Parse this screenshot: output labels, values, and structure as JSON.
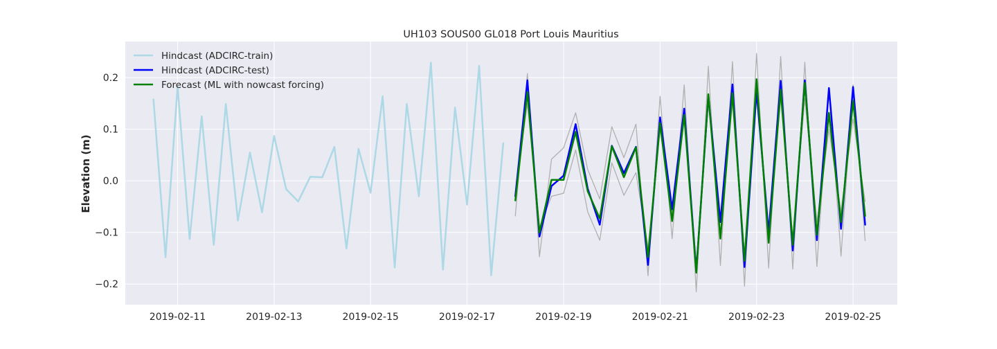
{
  "chart_data": {
    "type": "line",
    "title": "UH103 SOUS00 GL018 Port Louis Mauritius",
    "xlabel": "",
    "ylabel": "Elevation (m)",
    "x_axis": "date",
    "xlim": [
      "2019-02-09T22:00",
      "2019-02-25T22:00"
    ],
    "ylim": [
      -0.24,
      0.27
    ],
    "x_ticks": [
      "2019-02-11",
      "2019-02-13",
      "2019-02-15",
      "2019-02-17",
      "2019-02-19",
      "2019-02-21",
      "2019-02-23",
      "2019-02-25"
    ],
    "y_ticks": [
      -0.2,
      -0.1,
      0.0,
      0.1,
      0.2
    ],
    "y_tick_labels": [
      "−0.2",
      "−0.1",
      "0.0",
      "0.1",
      "0.2"
    ],
    "grid": true,
    "background": "#eaeaf2",
    "legend_position": "top-left",
    "series": [
      {
        "name": "Hindcast (ADCIRC-train)",
        "color": "#add8e6",
        "width": 2.5,
        "in_legend": true,
        "x": [
          "2019-02-10T12:00",
          "2019-02-10T18:00",
          "2019-02-11T00:00",
          "2019-02-11T06:00",
          "2019-02-11T12:00",
          "2019-02-11T18:00",
          "2019-02-12T00:00",
          "2019-02-12T06:00",
          "2019-02-12T12:00",
          "2019-02-12T18:00",
          "2019-02-13T00:00",
          "2019-02-13T06:00",
          "2019-02-13T12:00",
          "2019-02-13T18:00",
          "2019-02-14T00:00",
          "2019-02-14T06:00",
          "2019-02-14T12:00",
          "2019-02-14T18:00",
          "2019-02-15T00:00",
          "2019-02-15T06:00",
          "2019-02-15T12:00",
          "2019-02-15T18:00",
          "2019-02-16T00:00",
          "2019-02-16T06:00",
          "2019-02-16T12:00",
          "2019-02-16T18:00",
          "2019-02-17T00:00",
          "2019-02-17T06:00",
          "2019-02-17T12:00",
          "2019-02-17T18:00"
        ],
        "y": [
          0.158,
          -0.148,
          0.183,
          -0.113,
          0.125,
          -0.124,
          0.149,
          -0.077,
          0.055,
          -0.061,
          0.087,
          -0.016,
          -0.04,
          0.008,
          0.007,
          0.066,
          -0.131,
          0.062,
          -0.023,
          0.164,
          -0.168,
          0.149,
          -0.03,
          0.229,
          -0.172,
          0.142,
          -0.046,
          0.223,
          -0.183,
          0.073
        ]
      },
      {
        "name": "Observed",
        "color": "#b0b0b0",
        "width": 1.3,
        "in_legend": false,
        "x": [
          "2019-02-18T00:00",
          "2019-02-18T06:00",
          "2019-02-18T12:00",
          "2019-02-18T18:00",
          "2019-02-19T00:00",
          "2019-02-19T06:00",
          "2019-02-19T12:00",
          "2019-02-19T18:00",
          "2019-02-20T00:00",
          "2019-02-20T06:00",
          "2019-02-20T12:00",
          "2019-02-20T18:00",
          "2019-02-21T00:00",
          "2019-02-21T06:00",
          "2019-02-21T12:00",
          "2019-02-21T18:00",
          "2019-02-22T00:00",
          "2019-02-22T06:00",
          "2019-02-22T12:00",
          "2019-02-22T18:00",
          "2019-02-23T00:00",
          "2019-02-23T06:00",
          "2019-02-23T12:00",
          "2019-02-23T18:00",
          "2019-02-24T00:00",
          "2019-02-24T06:00",
          "2019-02-24T12:00",
          "2019-02-24T18:00",
          "2019-02-25T00:00",
          "2019-02-25T06:00"
        ],
        "y": [
          -0.068,
          0.208,
          -0.147,
          0.042,
          0.064,
          0.132,
          0.022,
          -0.035,
          0.105,
          0.045,
          0.11,
          -0.184,
          0.164,
          -0.112,
          0.186,
          -0.215,
          0.222,
          -0.164,
          0.231,
          -0.204,
          0.247,
          -0.169,
          0.241,
          -0.171,
          0.23,
          -0.166,
          0.18,
          -0.146,
          0.186,
          -0.116
        ]
      },
      {
        "name": "Observed (lower)",
        "color": "#b0b0b0",
        "width": 1.3,
        "in_legend": false,
        "x": [
          "2019-02-18T00:00",
          "2019-02-18T06:00",
          "2019-02-18T12:00",
          "2019-02-18T18:00",
          "2019-02-19T00:00",
          "2019-02-19T06:00",
          "2019-02-19T12:00",
          "2019-02-19T18:00",
          "2019-02-20T00:00",
          "2019-02-20T06:00",
          "2019-02-20T12:00",
          "2019-02-20T18:00",
          "2019-02-21T00:00",
          "2019-02-21T06:00",
          "2019-02-21T12:00",
          "2019-02-21T18:00",
          "2019-02-22T00:00",
          "2019-02-22T06:00",
          "2019-02-22T12:00",
          "2019-02-22T18:00",
          "2019-02-23T00:00",
          "2019-02-23T06:00",
          "2019-02-23T12:00",
          "2019-02-23T18:00",
          "2019-02-24T00:00",
          "2019-02-24T06:00",
          "2019-02-24T12:00",
          "2019-02-24T18:00",
          "2019-02-25T00:00",
          "2019-02-25T06:00"
        ],
        "y": [
          -0.02,
          0.15,
          -0.09,
          -0.03,
          -0.024,
          0.06,
          -0.06,
          -0.115,
          0.035,
          -0.028,
          0.016,
          -0.13,
          0.1,
          -0.06,
          0.12,
          -0.16,
          0.15,
          -0.08,
          0.15,
          -0.14,
          0.16,
          -0.1,
          0.16,
          -0.11,
          0.16,
          -0.08,
          0.1,
          -0.06,
          0.12,
          -0.04
        ]
      },
      {
        "name": "Hindcast (ADCIRC-test)",
        "color": "#0000ff",
        "width": 2.5,
        "in_legend": true,
        "x": [
          "2019-02-18T00:00",
          "2019-02-18T06:00",
          "2019-02-18T12:00",
          "2019-02-18T18:00",
          "2019-02-19T00:00",
          "2019-02-19T06:00",
          "2019-02-19T12:00",
          "2019-02-19T18:00",
          "2019-02-20T00:00",
          "2019-02-20T06:00",
          "2019-02-20T12:00",
          "2019-02-20T18:00",
          "2019-02-21T00:00",
          "2019-02-21T06:00",
          "2019-02-21T12:00",
          "2019-02-21T18:00",
          "2019-02-22T00:00",
          "2019-02-22T06:00",
          "2019-02-22T12:00",
          "2019-02-22T18:00",
          "2019-02-23T00:00",
          "2019-02-23T06:00",
          "2019-02-23T12:00",
          "2019-02-23T18:00",
          "2019-02-24T00:00",
          "2019-02-24T06:00",
          "2019-02-24T12:00",
          "2019-02-24T18:00",
          "2019-02-25T00:00",
          "2019-02-25T06:00"
        ],
        "y": [
          -0.03,
          0.195,
          -0.108,
          -0.01,
          0.01,
          0.11,
          -0.015,
          -0.085,
          0.068,
          0.015,
          0.066,
          -0.163,
          0.123,
          -0.055,
          0.14,
          -0.175,
          0.165,
          -0.08,
          0.187,
          -0.167,
          0.175,
          -0.1,
          0.194,
          -0.135,
          0.195,
          -0.115,
          0.18,
          -0.093,
          0.182,
          -0.085
        ]
      },
      {
        "name": "Forecast (ML with nowcast forcing)",
        "color": "#008000",
        "width": 2.5,
        "in_legend": true,
        "x": [
          "2019-02-18T00:00",
          "2019-02-18T06:00",
          "2019-02-18T12:00",
          "2019-02-18T18:00",
          "2019-02-19T00:00",
          "2019-02-19T06:00",
          "2019-02-19T12:00",
          "2019-02-19T18:00",
          "2019-02-20T00:00",
          "2019-02-20T06:00",
          "2019-02-20T12:00",
          "2019-02-20T18:00",
          "2019-02-21T00:00",
          "2019-02-21T06:00",
          "2019-02-21T12:00",
          "2019-02-21T18:00",
          "2019-02-22T00:00",
          "2019-02-22T06:00",
          "2019-02-22T12:00",
          "2019-02-22T18:00",
          "2019-02-23T00:00",
          "2019-02-23T06:00",
          "2019-02-23T12:00",
          "2019-02-23T18:00",
          "2019-02-24T00:00",
          "2019-02-24T06:00",
          "2019-02-24T12:00",
          "2019-02-24T18:00",
          "2019-02-25T00:00",
          "2019-02-25T06:00"
        ],
        "y": [
          -0.038,
          0.172,
          -0.1,
          0.002,
          0.002,
          0.095,
          -0.02,
          -0.073,
          0.067,
          0.007,
          0.065,
          -0.148,
          0.112,
          -0.078,
          0.128,
          -0.178,
          0.168,
          -0.112,
          0.17,
          -0.155,
          0.197,
          -0.12,
          0.177,
          -0.124,
          0.19,
          -0.105,
          0.132,
          -0.08,
          0.155,
          -0.068
        ]
      }
    ]
  }
}
